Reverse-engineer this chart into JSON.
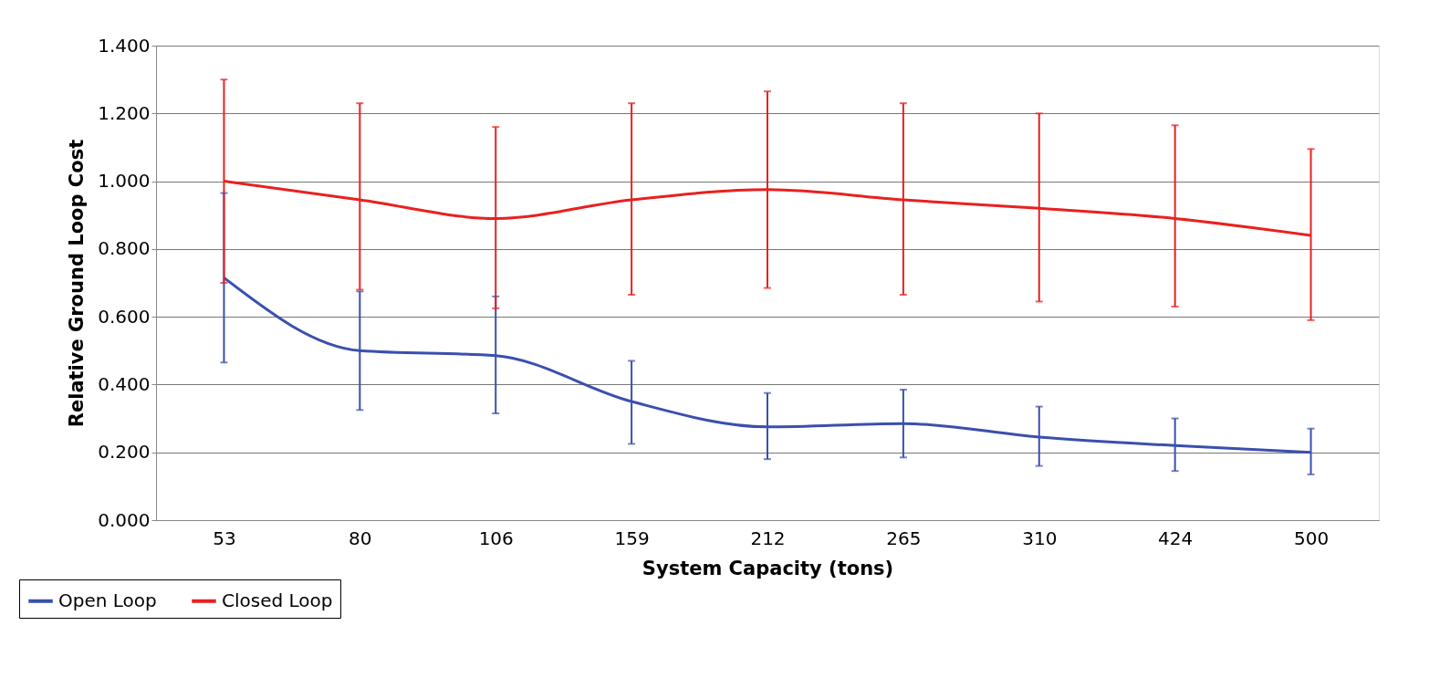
{
  "chart_data": {
    "type": "line",
    "xlabel": "System Capacity (tons)",
    "ylabel": "Relative Ground Loop Cost",
    "categories": [
      "53",
      "80",
      "106",
      "159",
      "212",
      "265",
      "310",
      "424",
      "500"
    ],
    "series": [
      {
        "name": "Open Loop",
        "color": "#3a4fb0",
        "values": [
          0.715,
          0.5,
          0.485,
          0.35,
          0.275,
          0.285,
          0.245,
          0.22,
          0.2
        ],
        "errors": [
          [
            0.465,
            0.965
          ],
          [
            0.325,
            0.675
          ],
          [
            0.315,
            0.66
          ],
          [
            0.225,
            0.47
          ],
          [
            0.18,
            0.375
          ],
          [
            0.185,
            0.385
          ],
          [
            0.16,
            0.335
          ],
          [
            0.145,
            0.3
          ],
          [
            0.135,
            0.27
          ]
        ]
      },
      {
        "name": "Closed Loop",
        "color": "#e8211f",
        "values": [
          1.0,
          0.945,
          0.89,
          0.945,
          0.975,
          0.945,
          0.92,
          0.89,
          0.84
        ],
        "errors": [
          [
            0.7,
            1.3
          ],
          [
            0.68,
            1.23
          ],
          [
            0.625,
            1.16
          ],
          [
            0.665,
            1.23
          ],
          [
            0.685,
            1.265
          ],
          [
            0.665,
            1.23
          ],
          [
            0.645,
            1.2
          ],
          [
            0.63,
            1.165
          ],
          [
            0.59,
            1.095
          ]
        ]
      }
    ],
    "ylim": [
      0,
      1.4
    ],
    "yticks": [
      {
        "value": 0,
        "label": "0.000"
      },
      {
        "value": 0.2,
        "label": "0.200"
      },
      {
        "value": 0.4,
        "label": "0.400"
      },
      {
        "value": 0.6,
        "label": "0.600"
      },
      {
        "value": 0.8,
        "label": "0.800"
      },
      {
        "value": 1.0,
        "label": "1.000"
      },
      {
        "value": 1.2,
        "label": "1.200"
      },
      {
        "value": 1.4,
        "label": "1.400"
      }
    ],
    "grid": "y",
    "legend": "bottom left",
    "marker": "none",
    "line_style": "solid"
  }
}
